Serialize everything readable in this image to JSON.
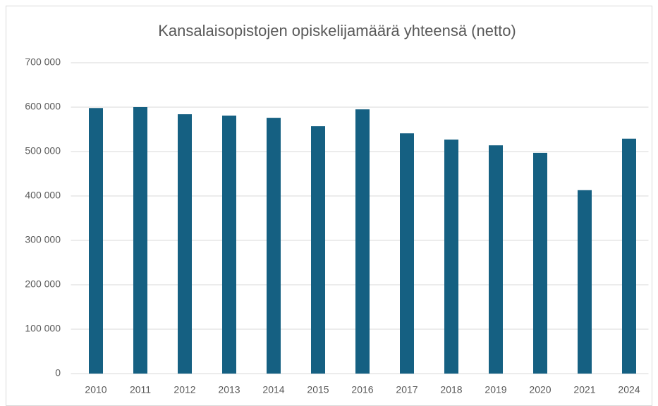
{
  "chart_data": {
    "type": "bar",
    "title": "Kansalaisopistojen opiskelijamäärä yhteensä (netto)",
    "categories": [
      "2010",
      "2011",
      "2012",
      "2013",
      "2014",
      "2015",
      "2016",
      "2017",
      "2018",
      "2019",
      "2020",
      "2021",
      "2024"
    ],
    "values": [
      598000,
      600000,
      584000,
      581000,
      576000,
      557000,
      595000,
      541000,
      527000,
      514000,
      497000,
      413000,
      529000
    ],
    "color": "#156082",
    "ylim": [
      0,
      700000
    ],
    "yticks": [
      0,
      {
        "value": 100000,
        "label": "100 000"
      },
      {
        "value": 200000,
        "label": "200 000"
      },
      {
        "value": 300000,
        "label": "300 000"
      },
      {
        "value": 400000,
        "label": "400 000"
      },
      {
        "value": 500000,
        "label": "500 000"
      },
      {
        "value": 600000,
        "label": "600 000"
      },
      {
        "value": 700000,
        "label": "700 000"
      }
    ],
    "grid": true
  }
}
